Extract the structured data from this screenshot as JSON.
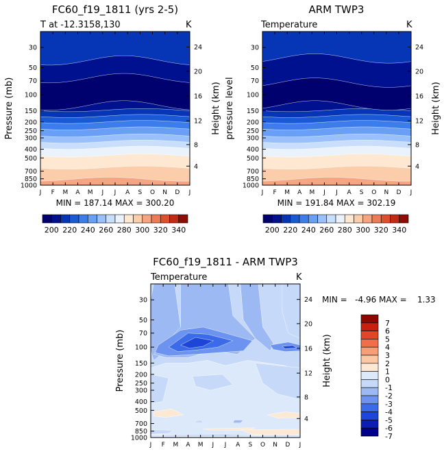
{
  "colors": {
    "levels": [
      "#00006e",
      "#00118f",
      "#0636b5",
      "#1a59d6",
      "#3d7deb",
      "#699ff5",
      "#99c0fb",
      "#c8defb",
      "#eaf2fc",
      "#ffe8d1",
      "#fbcdaa",
      "#f6a583",
      "#ef7a57",
      "#df4f2d",
      "#c22a14",
      "#8e0b06"
    ],
    "diff_levels": [
      "#00008a",
      "#0a1eb4",
      "#1d46d8",
      "#3b6be8",
      "#6c93ef",
      "#9db9f3",
      "#c6d9f8",
      "#dce9fb",
      "#fde9d3",
      "#fbc7a4",
      "#f79d78",
      "#f06e4a",
      "#e44428",
      "#c8200e",
      "#8c0602"
    ]
  },
  "chart_data": [
    {
      "type": "heatmap",
      "title": "FC60_f19_1811 (yrs 2-5)",
      "subtitle": "T at -12.3158,130",
      "units": "K",
      "xlabel": "",
      "ylabel": "Pressure (mb)",
      "y2label": "Height (km)",
      "x_ticks": [
        "J",
        "F",
        "M",
        "A",
        "M",
        "J",
        "J",
        "A",
        "S",
        "O",
        "N",
        "D",
        "J"
      ],
      "y_ticks": [
        30,
        50,
        70,
        100,
        150,
        200,
        250,
        300,
        400,
        500,
        700,
        850,
        1000
      ],
      "y2_ticks": [
        24,
        20,
        16,
        12,
        8,
        4
      ],
      "ylim": [
        1000,
        20
      ],
      "stats": "MIN = 187.14  MAX = 300.20",
      "min": 187.14,
      "max": 300.2,
      "colorbar": {
        "orientation": "horizontal",
        "tick_labels": [
          "200",
          "220",
          "240",
          "260",
          "280",
          "300",
          "320",
          "340"
        ],
        "range": [
          190,
          350
        ],
        "step": 10
      }
    },
    {
      "type": "heatmap",
      "title": "ARM TWP3",
      "subtitle": "Temperature",
      "units": "K",
      "xlabel": "",
      "ylabel": "pressure level",
      "y2label": "Height (km)",
      "x_ticks": [
        "J",
        "F",
        "M",
        "A",
        "M",
        "J",
        "J",
        "A",
        "S",
        "O",
        "N",
        "D",
        "J"
      ],
      "y_ticks": [
        30,
        50,
        70,
        100,
        150,
        200,
        250,
        300,
        400,
        500,
        700,
        850,
        1000
      ],
      "y2_ticks": [
        24,
        20,
        16,
        12,
        8,
        4
      ],
      "ylim": [
        1000,
        20
      ],
      "stats": "MIN = 191.84  MAX = 302.19",
      "min": 191.84,
      "max": 302.19,
      "colorbar": {
        "orientation": "horizontal",
        "tick_labels": [
          "200",
          "220",
          "240",
          "260",
          "280",
          "300",
          "320",
          "340"
        ],
        "range": [
          190,
          350
        ],
        "step": 10
      }
    },
    {
      "type": "heatmap",
      "title": "FC60_f19_1811 - ARM TWP3",
      "subtitle": "Temperature",
      "units": "K",
      "xlabel": "",
      "ylabel": "Pressure (mb)",
      "y2label": "Height (km)",
      "x_ticks": [
        "J",
        "F",
        "M",
        "A",
        "M",
        "J",
        "J",
        "A",
        "S",
        "O",
        "N",
        "D",
        "J"
      ],
      "y_ticks": [
        30,
        50,
        70,
        100,
        150,
        200,
        250,
        300,
        400,
        500,
        700,
        850,
        1000
      ],
      "y2_ticks": [
        24,
        20,
        16,
        12,
        8,
        4
      ],
      "ylim": [
        1000,
        20
      ],
      "stats": "MIN =   -4.96 MAX =    1.33",
      "min": -4.96,
      "max": 1.33,
      "colorbar": {
        "orientation": "vertical",
        "tick_labels": [
          "7",
          "6",
          "5",
          "4",
          "3",
          "2",
          "1",
          "0",
          "-1",
          "-2",
          "-3",
          "-4",
          "-5",
          "-6",
          "-7"
        ]
      }
    }
  ]
}
